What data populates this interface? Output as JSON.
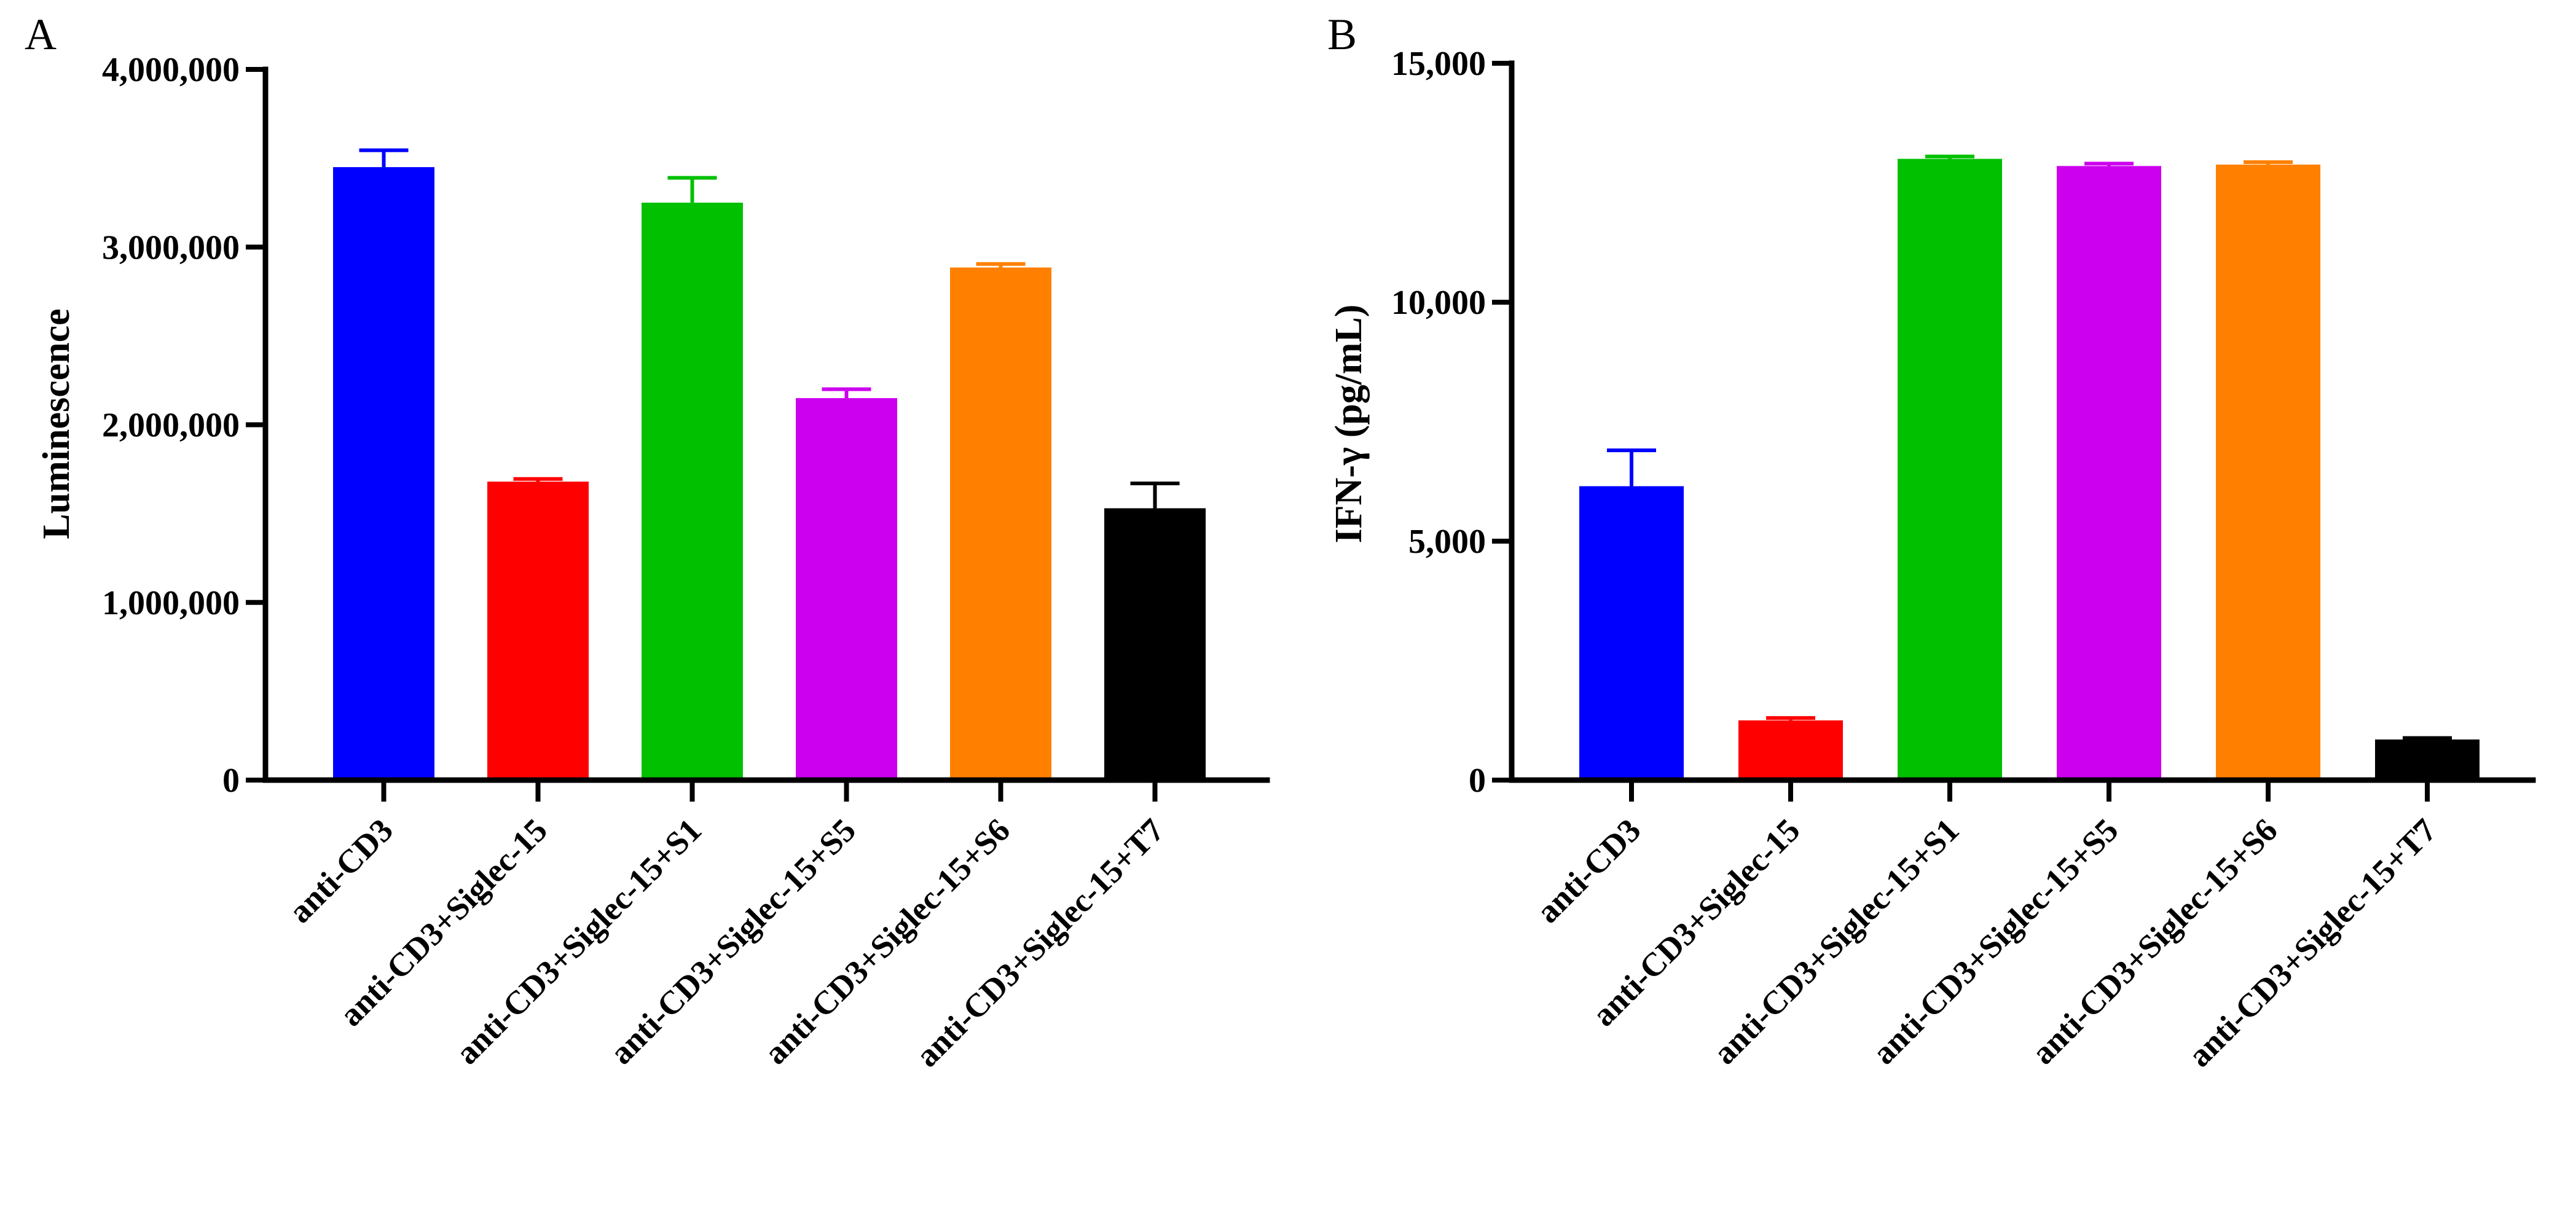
{
  "chart_data": [
    {
      "type": "bar",
      "panel_label": "A",
      "title": "",
      "xlabel": "",
      "ylabel": "Luminescence",
      "ylim": [
        0,
        4000000
      ],
      "yticks": [
        0,
        1000000,
        2000000,
        3000000,
        4000000
      ],
      "ytick_labels": [
        "0",
        "1,000,000",
        "2,000,000",
        "3,000,000",
        "4,000,000"
      ],
      "categories": [
        "anti-CD3",
        "anti-CD3+Siglec-15",
        "anti-CD3+Siglec-15+S1",
        "anti-CD3+Siglec-15+S5",
        "anti-CD3+Siglec-15+S6",
        "anti-CD3+Siglec-15+T7"
      ],
      "values": [
        3450000,
        1680000,
        3250000,
        2150000,
        2885000,
        1530000
      ],
      "errors": [
        95000,
        15000,
        140000,
        50000,
        20000,
        140000
      ],
      "colors": [
        "#0000ff",
        "#ff0000",
        "#00c000",
        "#cc00ee",
        "#ff8000",
        "#000000"
      ],
      "grid": false
    },
    {
      "type": "bar",
      "panel_label": "B",
      "title": "",
      "xlabel": "",
      "ylabel": "IFN-γ (pg/mL)",
      "ylim": [
        0,
        15000
      ],
      "yticks": [
        0,
        5000,
        10000,
        15000
      ],
      "ytick_labels": [
        "0",
        "5,000",
        "10,000",
        "15,000"
      ],
      "categories": [
        "anti-CD3",
        "anti-CD3+Siglec-15",
        "anti-CD3+Siglec-15+S1",
        "anti-CD3+Siglec-15+S5",
        "anti-CD3+Siglec-15+S6",
        "anti-CD3+Siglec-15+T7"
      ],
      "values": [
        6150,
        1250,
        13000,
        12850,
        12880,
        850
      ],
      "errors": [
        750,
        50,
        50,
        50,
        50,
        30
      ],
      "colors": [
        "#0000ff",
        "#ff0000",
        "#00c000",
        "#cc00ee",
        "#ff8000",
        "#000000"
      ],
      "grid": false
    }
  ]
}
